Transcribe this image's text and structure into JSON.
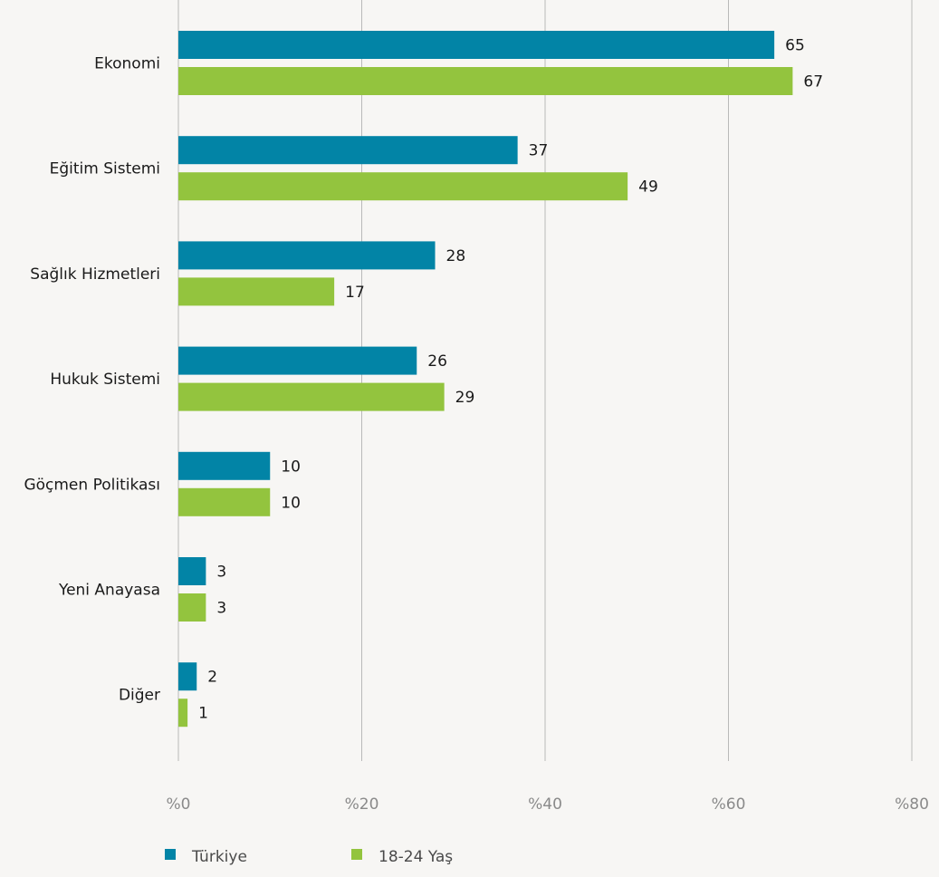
{
  "chart_data": {
    "type": "bar",
    "orientation": "horizontal",
    "categories": [
      "Ekonomi",
      "Eğitim Sistemi",
      "Sağlık Hizmetleri",
      "Hukuk Sistemi",
      "Göçmen Politikası",
      "Yeni Anayasa",
      "Diğer"
    ],
    "series": [
      {
        "name": "Türkiye",
        "color": "#0284a6",
        "values": [
          65,
          37,
          28,
          26,
          10,
          3,
          2
        ]
      },
      {
        "name": "18-24 Yaş",
        "color": "#93c43e",
        "values": [
          67,
          49,
          17,
          29,
          10,
          3,
          1
        ]
      }
    ],
    "xlim": [
      0,
      80
    ],
    "xticks": [
      {
        "value": 0,
        "label": "%0"
      },
      {
        "value": 20,
        "label": "%20"
      },
      {
        "value": 40,
        "label": "%40"
      },
      {
        "value": 60,
        "label": "%60"
      },
      {
        "value": 80,
        "label": "%80"
      }
    ],
    "grid": true,
    "legend_position": "bottom-left"
  }
}
